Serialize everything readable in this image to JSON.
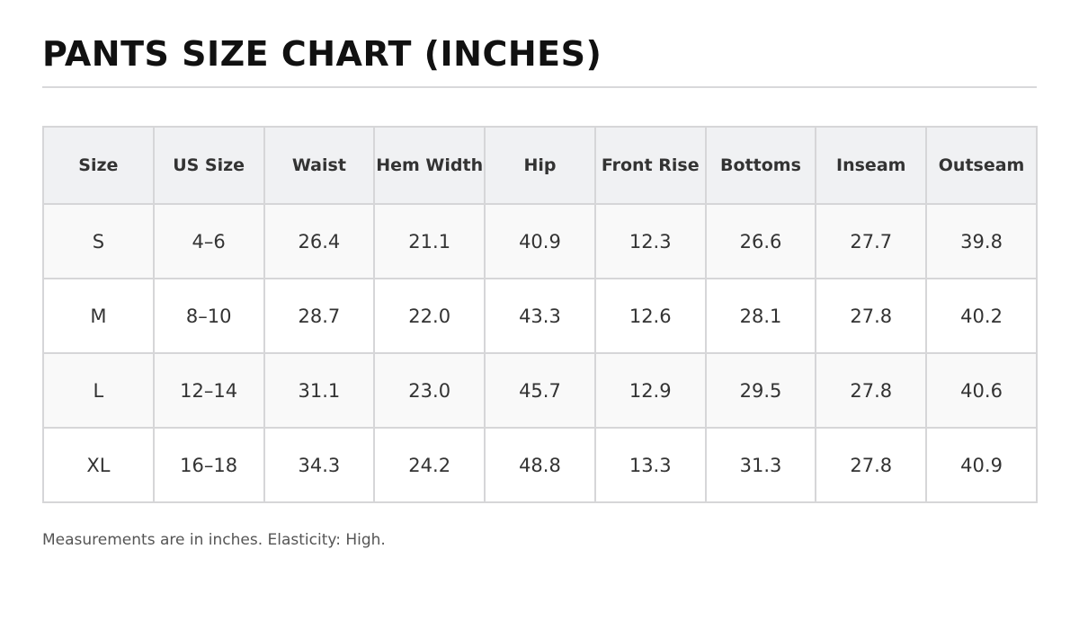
{
  "header": {
    "title": "PANTS SIZE CHART (INCHES)"
  },
  "table": {
    "columns": [
      "Size",
      "US Size",
      "Waist",
      "Hem Width",
      "Hip",
      "Front Rise",
      "Bottoms",
      "Inseam",
      "Outseam"
    ],
    "rows": [
      [
        "S",
        "4–6",
        "26.4",
        "21.1",
        "40.9",
        "12.3",
        "26.6",
        "27.7",
        "39.8"
      ],
      [
        "M",
        "8–10",
        "28.7",
        "22.0",
        "43.3",
        "12.6",
        "28.1",
        "27.8",
        "40.2"
      ],
      [
        "L",
        "12–14",
        "31.1",
        "23.0",
        "45.7",
        "12.9",
        "29.5",
        "27.8",
        "40.6"
      ],
      [
        "XL",
        "16–18",
        "34.3",
        "24.2",
        "48.8",
        "13.3",
        "31.3",
        "27.8",
        "40.9"
      ]
    ]
  },
  "footer": {
    "note": "Measurements are in inches. Elasticity: High."
  }
}
